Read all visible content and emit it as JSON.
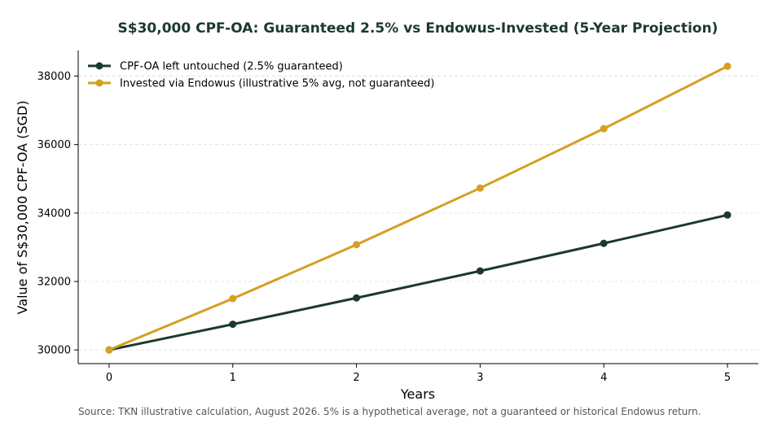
{
  "chart_data": {
    "type": "line",
    "title": "S$30,000 CPF-OA: Guaranteed 2.5% vs Endowus-Invested (5-Year Projection)",
    "xlabel": "Years",
    "ylabel": "Value of S$30,000 CPF-OA (SGD)",
    "x": [
      0,
      1,
      2,
      3,
      4,
      5
    ],
    "x_ticks": [
      "0",
      "1",
      "2",
      "3",
      "4",
      "5"
    ],
    "xlim": [
      -0.25,
      5.25
    ],
    "ylim": [
      29600,
      38750
    ],
    "y_ticks": [
      30000,
      32000,
      34000,
      36000,
      38000
    ],
    "grid": "horizontal dashed",
    "legend_position": "top-left",
    "series": [
      {
        "name": "CPF-OA left untouched (2.5% guaranteed)",
        "color": "#1b3a2a",
        "values": [
          30000,
          30750,
          31519,
          32307,
          33114,
          33942
        ]
      },
      {
        "name": "Invested via Endowus (illustrative 5% avg, not guaranteed)",
        "color": "#d4a020",
        "values": [
          30000,
          31500,
          33075,
          34729,
          36465,
          38288
        ]
      }
    ],
    "source_note": "Source: TKN illustrative calculation, August 2026. 5% is a hypothetical average, not a guaranteed or historical Endowus return."
  },
  "style": {
    "title_color": "#1b3a2a",
    "grid_color": "#dddddd",
    "axis_color": "#000000"
  }
}
